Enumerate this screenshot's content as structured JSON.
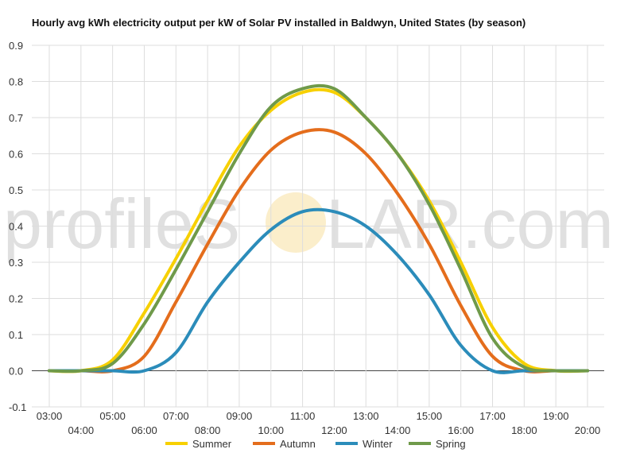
{
  "chart_data": {
    "type": "line",
    "title": "Hourly avg kWh electricity output per kW of Solar PV installed in Baldwyn, United States (by season)",
    "xlabel": "",
    "ylabel": "",
    "ylim": [
      -0.1,
      0.9
    ],
    "yticks": [
      "-0.1",
      "0.0",
      "0.1",
      "0.2",
      "0.3",
      "0.4",
      "0.5",
      "0.6",
      "0.7",
      "0.8",
      "0.9"
    ],
    "categories": [
      "03:00",
      "04:00",
      "05:00",
      "06:00",
      "07:00",
      "08:00",
      "09:00",
      "10:00",
      "11:00",
      "12:00",
      "13:00",
      "14:00",
      "15:00",
      "16:00",
      "17:00",
      "18:00",
      "19:00",
      "20:00"
    ],
    "grid": true,
    "legend_position": "bottom",
    "series": [
      {
        "name": "Summer",
        "color": "#f7d000",
        "values": [
          0,
          0,
          0.03,
          0.16,
          0.31,
          0.47,
          0.62,
          0.72,
          0.77,
          0.77,
          0.7,
          0.6,
          0.47,
          0.3,
          0.12,
          0.02,
          0,
          0
        ]
      },
      {
        "name": "Autumn",
        "color": "#e46d1c",
        "values": [
          0,
          0,
          0,
          0.04,
          0.19,
          0.35,
          0.5,
          0.61,
          0.66,
          0.66,
          0.6,
          0.49,
          0.35,
          0.18,
          0.04,
          0,
          0,
          0
        ]
      },
      {
        "name": "Winter",
        "color": "#2b8cba",
        "values": [
          0,
          0,
          0,
          0,
          0.05,
          0.19,
          0.3,
          0.39,
          0.44,
          0.44,
          0.4,
          0.32,
          0.21,
          0.07,
          0,
          0,
          0,
          0
        ]
      },
      {
        "name": "Spring",
        "color": "#6f9a4a",
        "values": [
          0,
          0,
          0.02,
          0.13,
          0.28,
          0.44,
          0.6,
          0.73,
          0.78,
          0.78,
          0.7,
          0.6,
          0.46,
          0.28,
          0.09,
          0.01,
          0,
          0
        ]
      }
    ]
  },
  "watermark": {
    "left": "profileS",
    "right": "LAR.com"
  }
}
